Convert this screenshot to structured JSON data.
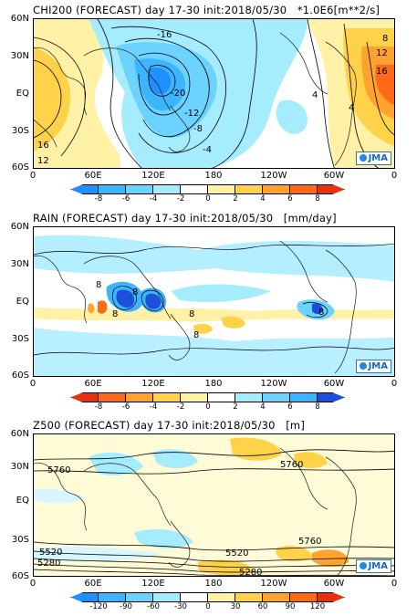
{
  "panels": [
    {
      "id": "chi200",
      "title": "CHI200 (FORECAST) day 17-30 init:2018/05/30   *1.0E6[m**2/s]",
      "lat_labels": [
        "60N",
        "30N",
        "EQ",
        "30S",
        "60S"
      ],
      "lon_labels": [
        "0",
        "60E",
        "120E",
        "180",
        "120W",
        "60W",
        "0"
      ],
      "credit": "JMA",
      "contour_labels": [
        "-16",
        "-20",
        "-12",
        "-8",
        "-4",
        "4",
        "12",
        "16",
        "8",
        "16",
        "12",
        "4"
      ],
      "colorbar": {
        "labels": [
          "-8",
          "-6",
          "-4",
          "-2",
          "0",
          "2",
          "4",
          "6",
          "8"
        ],
        "colors": [
          "#1e90ff",
          "#3cb4ff",
          "#6cd2ff",
          "#a6ecff",
          "#ffffff",
          "#fff2a6",
          "#ffd24a",
          "#ffa22e",
          "#ff6a1a",
          "#e63012"
        ]
      }
    },
    {
      "id": "rain",
      "title": "RAIN (FORECAST) day 17-30 init:2018/05/30   [mm/day]",
      "lat_labels": [
        "60N",
        "30N",
        "EQ",
        "30S",
        "60S"
      ],
      "lon_labels": [
        "0",
        "60E",
        "120E",
        "180",
        "120W",
        "60W",
        "0"
      ],
      "credit": "JMA",
      "contour_labels": [
        "8",
        "8",
        "8",
        "8",
        "8",
        "8"
      ],
      "colorbar": {
        "labels": [
          "-8",
          "-6",
          "-4",
          "-2",
          "0",
          "2",
          "4",
          "6",
          "8"
        ],
        "colors": [
          "#e63012",
          "#ff6a1a",
          "#ffa22e",
          "#ffd24a",
          "#fff2a6",
          "#ffffff",
          "#a6ecff",
          "#6cd2ff",
          "#3cb4ff",
          "#1e4fd8"
        ]
      }
    },
    {
      "id": "z500",
      "title": "Z500 (FORECAST) day 17-30 init:2018/05/30   [m]",
      "lat_labels": [
        "60N",
        "30N",
        "EQ",
        "30S",
        "60S"
      ],
      "lon_labels": [
        "0",
        "60E",
        "120E",
        "180",
        "120W",
        "60W",
        "0"
      ],
      "credit": "JMA",
      "contour_labels": [
        "5760",
        "5760",
        "5760",
        "5520",
        "5520",
        "5280",
        "5280"
      ],
      "colorbar": {
        "labels": [
          "-120",
          "-90",
          "-60",
          "-30",
          "0",
          "30",
          "60",
          "90",
          "120"
        ],
        "colors": [
          "#1e90ff",
          "#3cb4ff",
          "#6cd2ff",
          "#a6ecff",
          "#ffffff",
          "#fff2a6",
          "#ffd24a",
          "#ffa22e",
          "#ff6a1a",
          "#e63012"
        ]
      }
    }
  ]
}
